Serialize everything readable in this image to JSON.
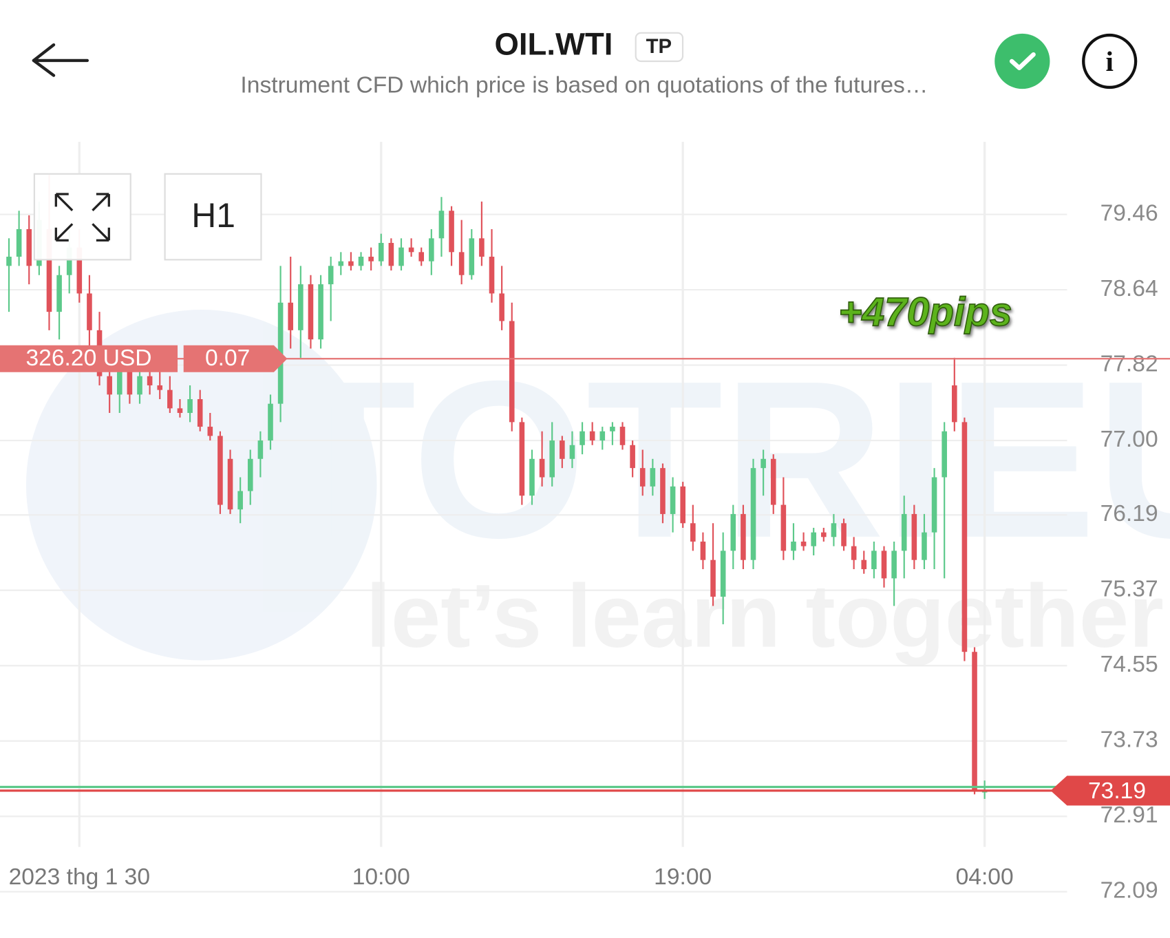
{
  "header": {
    "title": "OIL.WTI",
    "badge": "TP",
    "subtitle": "Instrument CFD which price is based on quotations of the futures…"
  },
  "toolbar": {
    "timeframe": "H1"
  },
  "position": {
    "profit": "326.20 USD",
    "volume": 0.07,
    "price": 77.89
  },
  "watermark": {
    "brand": "TOTRIEU",
    "tagline": "let’s learn together"
  },
  "chart_data": {
    "type": "candlestick",
    "annotation": "+470pips",
    "categories": [
      null,
      null,
      null,
      null,
      null,
      null,
      null,
      "2023 thg 1 30",
      null,
      null,
      null,
      null,
      null,
      null,
      null,
      null,
      null,
      null,
      null,
      null,
      null,
      null,
      null,
      null,
      null,
      null,
      null,
      null,
      null,
      null,
      null,
      null,
      null,
      null,
      null,
      null,
      null,
      "10:00",
      null,
      null,
      null,
      null,
      null,
      null,
      null,
      null,
      null,
      null,
      null,
      null,
      null,
      null,
      null,
      null,
      null,
      null,
      null,
      null,
      null,
      null,
      null,
      null,
      null,
      null,
      null,
      null,
      null,
      "19:00",
      null,
      null,
      null,
      null,
      null,
      null,
      null,
      null,
      null,
      null,
      null,
      null,
      null,
      null,
      null,
      null,
      null,
      null,
      null,
      null,
      null,
      null,
      null,
      null,
      null,
      null,
      null,
      null,
      null,
      "04:00"
    ],
    "open": [
      78.9,
      79.0,
      79.3,
      78.9,
      79.3,
      78.4,
      78.8,
      79.1,
      78.6,
      78.2,
      77.7,
      77.5,
      77.8,
      77.5,
      77.7,
      77.6,
      77.55,
      77.35,
      77.3,
      77.45,
      77.15,
      77.05,
      76.8,
      76.25,
      76.45,
      76.8,
      77.0,
      77.4,
      78.5,
      78.2,
      78.7,
      78.1,
      78.7,
      78.9,
      78.95,
      78.9,
      79.0,
      78.95,
      79.15,
      78.9,
      79.1,
      79.05,
      78.95,
      79.2,
      79.5,
      79.05,
      78.8,
      79.2,
      79.0,
      78.6,
      78.3,
      77.2,
      76.4,
      76.8,
      76.6,
      77.0,
      76.8,
      76.95,
      77.1,
      77.0,
      77.1,
      77.15,
      76.95,
      76.7,
      76.5,
      76.7,
      76.2,
      76.5,
      76.1,
      75.9,
      75.7,
      75.3,
      75.8,
      76.2,
      75.7,
      76.7,
      76.8,
      76.3,
      75.8,
      75.9,
      75.85,
      76.0,
      75.95,
      76.1,
      75.85,
      75.7,
      75.6,
      75.8,
      75.5,
      75.8,
      76.2,
      75.7,
      76.0,
      76.6,
      77.6,
      77.2,
      74.7,
      73.17
    ],
    "high": [
      79.2,
      79.5,
      79.45,
      79.6,
      79.9,
      78.9,
      79.3,
      79.3,
      78.8,
      78.4,
      78.0,
      77.9,
      77.85,
      77.75,
      77.8,
      77.9,
      77.7,
      77.45,
      77.6,
      77.55,
      77.3,
      77.1,
      76.9,
      76.6,
      76.9,
      77.1,
      77.5,
      78.9,
      79.0,
      78.9,
      78.8,
      78.8,
      79.0,
      79.05,
      79.05,
      79.05,
      79.1,
      79.25,
      79.2,
      79.2,
      79.2,
      79.1,
      79.3,
      79.65,
      79.55,
      79.4,
      79.3,
      79.6,
      79.3,
      78.9,
      78.5,
      77.25,
      76.9,
      77.1,
      77.2,
      77.05,
      77.1,
      77.2,
      77.2,
      77.15,
      77.2,
      77.2,
      77.0,
      76.9,
      76.8,
      76.75,
      76.6,
      76.55,
      76.3,
      76.0,
      76.1,
      76.0,
      76.3,
      76.3,
      76.8,
      76.9,
      76.85,
      76.6,
      76.1,
      76.0,
      76.05,
      76.05,
      76.2,
      76.15,
      75.95,
      75.8,
      75.9,
      75.85,
      75.9,
      76.4,
      76.3,
      76.2,
      76.7,
      77.2,
      77.9,
      77.25,
      74.75,
      73.3
    ],
    "low": [
      78.4,
      78.9,
      78.7,
      78.8,
      78.2,
      78.1,
      78.6,
      78.5,
      78.0,
      77.6,
      77.3,
      77.3,
      77.4,
      77.4,
      77.5,
      77.45,
      77.3,
      77.25,
      77.2,
      77.1,
      77.0,
      76.2,
      76.2,
      76.1,
      76.3,
      76.6,
      76.9,
      77.2,
      78.0,
      77.9,
      78.0,
      78.0,
      78.3,
      78.8,
      78.85,
      78.85,
      78.85,
      78.9,
      78.85,
      78.85,
      79.0,
      78.9,
      78.8,
      79.0,
      78.9,
      78.7,
      78.75,
      78.9,
      78.5,
      78.2,
      77.1,
      76.3,
      76.3,
      76.5,
      76.5,
      76.7,
      76.7,
      76.85,
      76.95,
      76.9,
      76.95,
      76.9,
      76.6,
      76.4,
      76.4,
      76.1,
      76.0,
      76.05,
      75.8,
      75.6,
      75.2,
      75.0,
      75.6,
      75.6,
      75.6,
      76.4,
      76.2,
      75.7,
      75.7,
      75.8,
      75.75,
      75.9,
      75.85,
      75.8,
      75.6,
      75.55,
      75.5,
      75.4,
      75.2,
      75.5,
      75.6,
      75.6,
      75.6,
      75.5,
      77.1,
      74.6,
      73.15,
      73.1
    ],
    "close": [
      79.0,
      79.3,
      78.9,
      79.4,
      78.4,
      78.8,
      79.1,
      78.6,
      78.2,
      77.7,
      77.5,
      77.8,
      77.5,
      77.7,
      77.6,
      77.55,
      77.35,
      77.3,
      77.45,
      77.15,
      77.05,
      76.3,
      76.25,
      76.45,
      76.8,
      77.0,
      77.4,
      78.5,
      78.2,
      78.7,
      78.1,
      78.7,
      78.9,
      78.95,
      78.9,
      79.0,
      78.95,
      79.15,
      78.9,
      79.1,
      79.05,
      78.95,
      79.2,
      79.5,
      79.05,
      78.8,
      79.2,
      79.0,
      78.6,
      78.3,
      77.2,
      76.4,
      76.8,
      76.6,
      77.0,
      76.8,
      76.95,
      77.1,
      77.0,
      77.1,
      77.15,
      76.95,
      76.7,
      76.5,
      76.7,
      76.2,
      76.5,
      76.1,
      75.9,
      75.7,
      75.3,
      75.8,
      76.2,
      75.7,
      76.7,
      76.8,
      76.3,
      75.8,
      75.9,
      75.85,
      76.0,
      75.95,
      76.1,
      75.85,
      75.7,
      75.6,
      75.8,
      75.5,
      75.8,
      76.2,
      75.7,
      76.0,
      76.6,
      77.1,
      77.2,
      74.7,
      73.2,
      73.19
    ],
    "up_color": "#5cc98a",
    "down_color": "#e0525a",
    "ylim": [
      72.05,
      80.25
    ],
    "yticks": [
      72.09,
      72.91,
      73.73,
      74.55,
      75.37,
      76.19,
      {
        "value": 77,
        "label": "77.00"
      },
      77.82,
      78.64,
      79.46
    ],
    "grid": true,
    "last_price": 73.19,
    "ask_price": 73.23
  }
}
